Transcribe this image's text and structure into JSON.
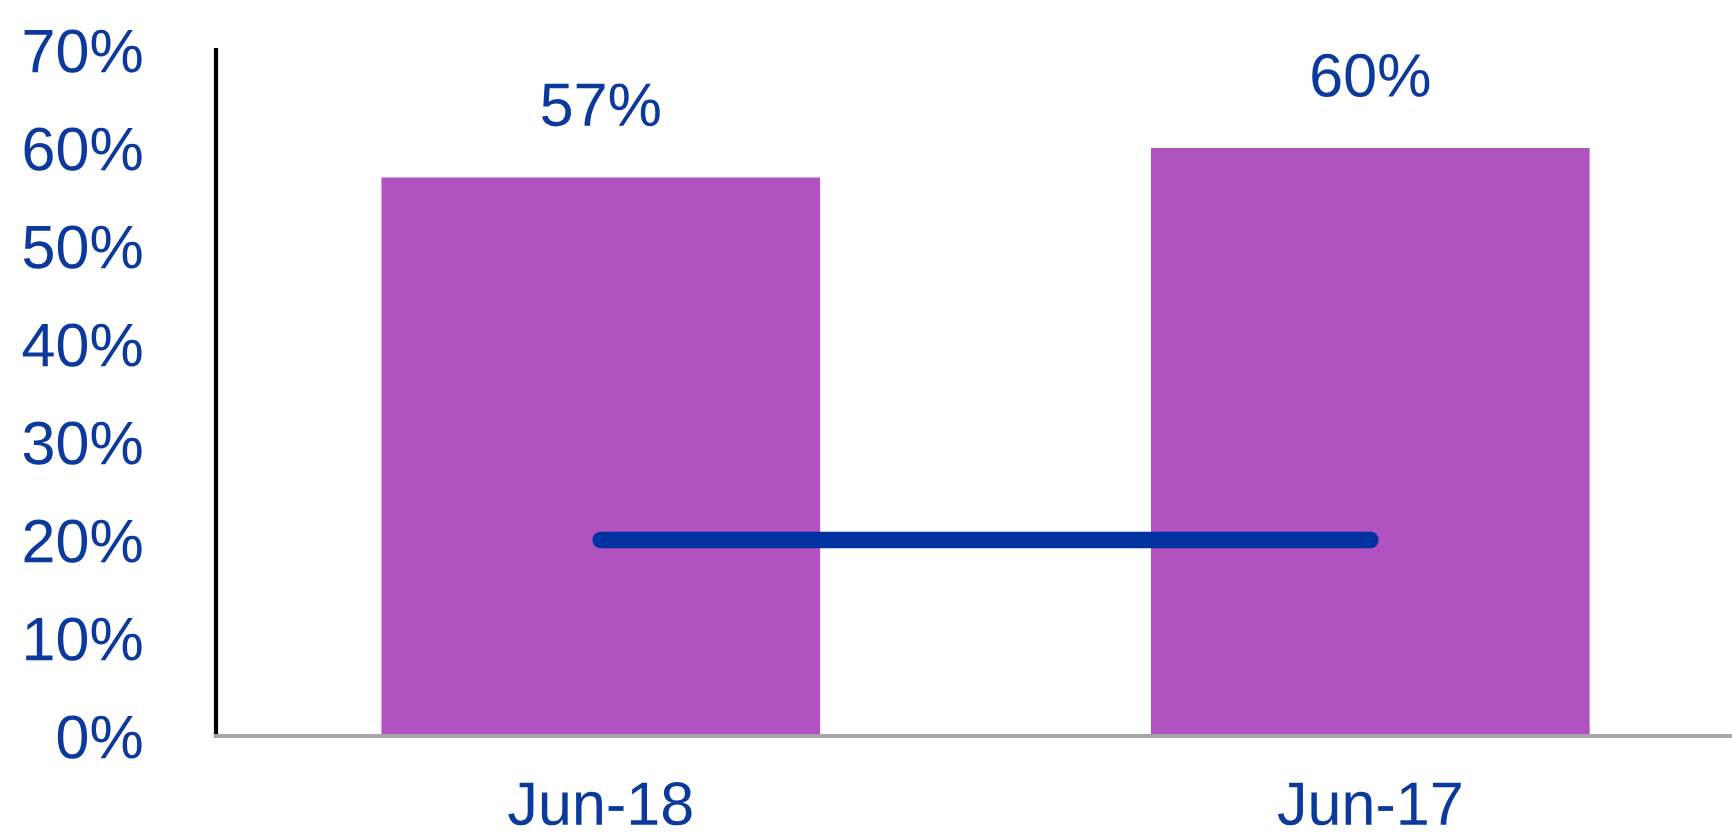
{
  "chart_data": {
    "type": "bar",
    "categories": [
      "Jun-18",
      "Jun-17"
    ],
    "series": [
      {
        "color": "#b052c0",
        "values": [
          57,
          60
        ],
        "value_labels": [
          "57%",
          "60%"
        ]
      },
      {
        "type": "line",
        "color": "#0033a0",
        "values": [
          20,
          20
        ]
      }
    ],
    "ylim": [
      0,
      70
    ],
    "yticks": [
      {
        "value": 0,
        "label": "0%"
      },
      {
        "value": 10,
        "label": "10%"
      },
      {
        "value": 20,
        "label": "20%"
      },
      {
        "value": 30,
        "label": "30%"
      },
      {
        "value": 40,
        "label": "40%"
      },
      {
        "value": 50,
        "label": "50%"
      },
      {
        "value": 60,
        "label": "60%"
      },
      {
        "value": 70,
        "label": "70%"
      }
    ],
    "grid": false
  }
}
